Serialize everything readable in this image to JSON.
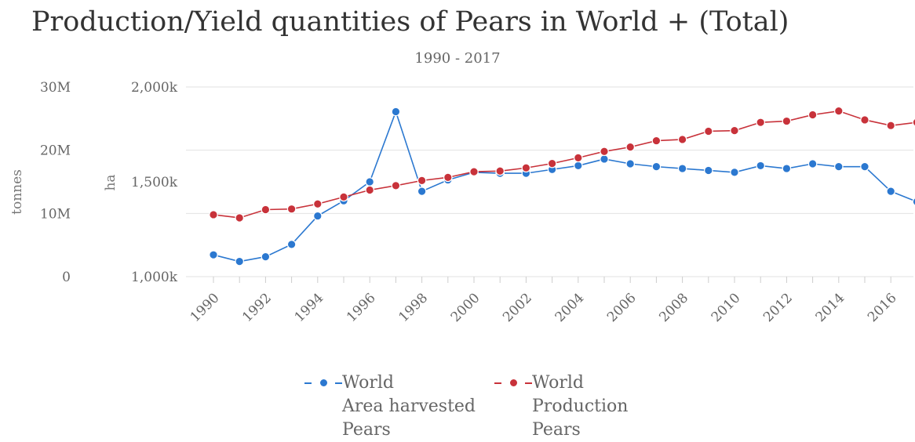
{
  "chart_data": {
    "type": "line",
    "title": "Production/Yield quantities of Pears in World + (Total)",
    "subtitle": "1990 - 2017",
    "x": [
      1990,
      1991,
      1992,
      1993,
      1994,
      1995,
      1996,
      1997,
      1998,
      1999,
      2000,
      2001,
      2002,
      2003,
      2004,
      2005,
      2006,
      2007,
      2008,
      2009,
      2010,
      2011,
      2012,
      2013,
      2014,
      2015,
      2016,
      2017
    ],
    "x_tick_labels": [
      "1990",
      "1992",
      "1994",
      "1996",
      "1998",
      "2000",
      "2002",
      "2004",
      "2006",
      "2008",
      "2010",
      "2012",
      "2014",
      "2016"
    ],
    "y_left_outer": {
      "label": "tonnes",
      "ticks": [
        "30M",
        "20M",
        "10M",
        "0"
      ],
      "range": [
        0,
        30000000
      ]
    },
    "y_left_inner": {
      "label": "ha",
      "ticks": [
        "2,000k",
        "1,500k",
        "1,000k"
      ],
      "range": [
        1000000,
        2000000
      ]
    },
    "series": [
      {
        "name_lines": [
          "World",
          "Area harvested",
          "Pears"
        ],
        "axis": "ha",
        "color": "#2b78d0",
        "values": [
          1115000,
          1080000,
          1105000,
          1170000,
          1320000,
          1400000,
          1500000,
          1870000,
          1450000,
          1510000,
          1550000,
          1545000,
          1545000,
          1565000,
          1585000,
          1620000,
          1595000,
          1580000,
          1570000,
          1560000,
          1550000,
          1585000,
          1570000,
          1595000,
          1580000,
          1580000,
          1450000,
          1395000
        ]
      },
      {
        "name_lines": [
          "World",
          "Production",
          "Pears"
        ],
        "axis": "tonnes",
        "color": "#c8323a",
        "values": [
          9800000,
          9300000,
          10600000,
          10700000,
          11500000,
          12600000,
          13700000,
          14400000,
          15200000,
          15700000,
          16600000,
          16700000,
          17200000,
          17900000,
          18800000,
          19800000,
          20500000,
          21500000,
          21700000,
          23000000,
          23100000,
          24400000,
          24600000,
          25600000,
          26200000,
          24800000,
          23900000,
          24400000
        ]
      }
    ],
    "grid": true,
    "legend_position": "bottom-center"
  }
}
